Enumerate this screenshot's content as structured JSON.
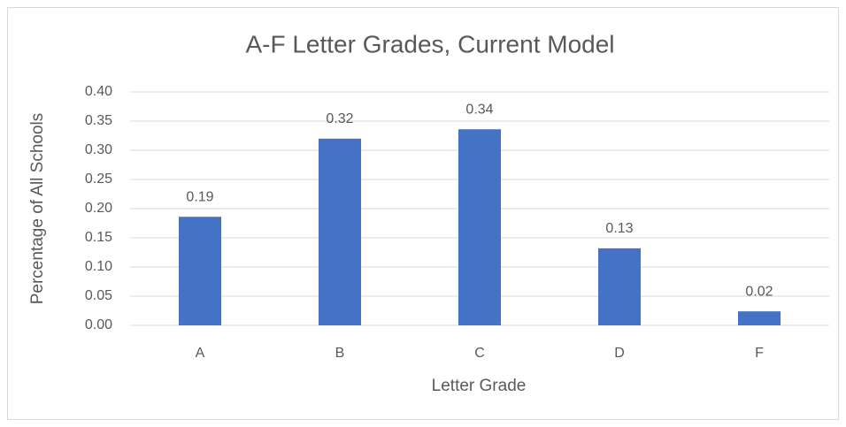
{
  "chart_data": {
    "type": "bar",
    "title": "A-F Letter Grades, Current Model",
    "x_label": "Letter Grade",
    "y_label": "Percentage of All Schools",
    "categories": [
      "A",
      "B",
      "C",
      "D",
      "F"
    ],
    "values": [
      0.186,
      0.32,
      0.336,
      0.132,
      0.024
    ],
    "value_labels": [
      "0.19",
      "0.32",
      "0.34",
      "0.13",
      "0.02"
    ],
    "color": "#4472c4",
    "ylim": [
      0,
      0.4
    ],
    "yticks": [
      {
        "value": 0,
        "label": "0.00"
      },
      {
        "value": 0.05,
        "label": "0.05"
      },
      {
        "value": 0.1,
        "label": "0.10"
      },
      {
        "value": 0.15,
        "label": "0.15"
      },
      {
        "value": 0.2,
        "label": "0.20"
      },
      {
        "value": 0.25,
        "label": "0.25"
      },
      {
        "value": 0.3,
        "label": "0.30"
      },
      {
        "value": 0.35,
        "label": "0.35"
      },
      {
        "value": 0.4,
        "label": "0.40"
      }
    ],
    "grid": true
  }
}
